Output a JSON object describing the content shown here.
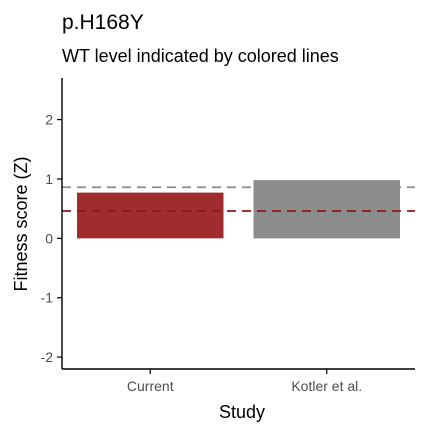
{
  "chart_data": {
    "type": "bar",
    "title": "p.H168Y",
    "subtitle": "WT level indicated by colored lines",
    "xlabel": "Study",
    "ylabel": "Fitness score (Z)",
    "categories": [
      "Current",
      "Kotler et al."
    ],
    "values": [
      0.77,
      0.98
    ],
    "bar_colors": [
      "#a02c2f",
      "#8c8c8c"
    ],
    "wt_levels": [
      {
        "value": 0.46,
        "color": "#8b1a1a"
      },
      {
        "value": 0.86,
        "color": "#8c8c8c"
      }
    ],
    "ylim": [
      -2.2,
      2.7
    ],
    "yticks": [
      -2,
      -1,
      0,
      1,
      2
    ],
    "ytick_labels": [
      "-2",
      "-1",
      "0",
      "1",
      "2"
    ],
    "grid": false
  }
}
